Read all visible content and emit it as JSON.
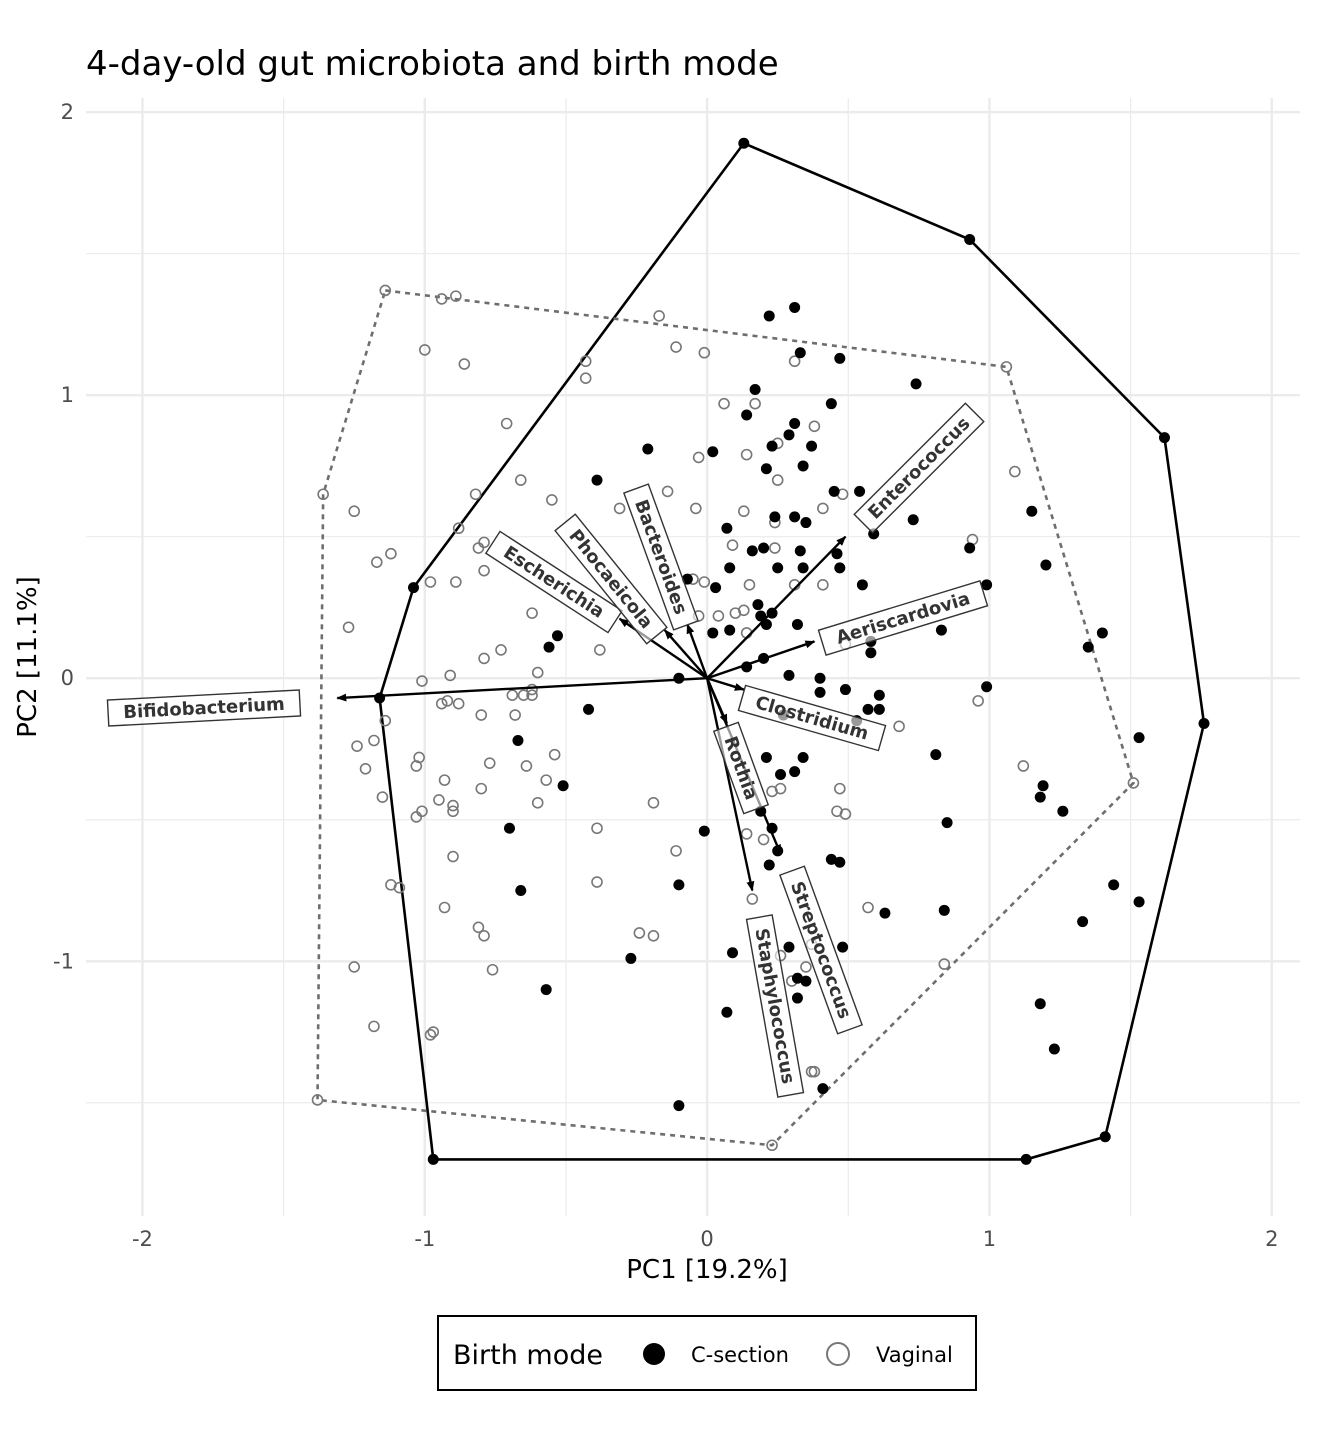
{
  "chart_data": {
    "type": "scatter",
    "title": "4-day-old gut microbiota and birth mode",
    "xlabel": "PC1 [19.2%]",
    "ylabel": "PC2 [11.1%]",
    "xlim": [
      -2.2,
      2.1
    ],
    "ylim": [
      -1.9,
      2.05
    ],
    "x_ticks": [
      -2,
      -1,
      0,
      1,
      2
    ],
    "x_tick_labels": [
      "-2",
      "-1",
      "0",
      "1",
      "2"
    ],
    "y_ticks": [
      -1,
      0,
      1,
      2
    ],
    "y_tick_labels": [
      "-1",
      "0",
      "1",
      "2"
    ],
    "grid": true,
    "legend": {
      "title": "Birth mode",
      "position": "bottom",
      "entries": [
        "C-section",
        "Vaginal"
      ]
    },
    "series": [
      {
        "name": "C-section",
        "marker": "filled-circle",
        "color": "#000000",
        "hull_style": "solid",
        "hull": [
          [
            0.13,
            1.89
          ],
          [
            0.93,
            1.55
          ],
          [
            1.62,
            0.85
          ],
          [
            1.76,
            -0.16
          ],
          [
            1.41,
            -1.62
          ],
          [
            1.13,
            -1.7
          ],
          [
            -0.97,
            -1.7
          ],
          [
            -1.16,
            -0.07
          ],
          [
            -1.04,
            0.32
          ]
        ],
        "points": [
          [
            0.13,
            1.89
          ],
          [
            0.93,
            1.55
          ],
          [
            1.62,
            0.85
          ],
          [
            1.76,
            -0.16
          ],
          [
            1.41,
            -1.62
          ],
          [
            1.13,
            -1.7
          ],
          [
            -0.97,
            -1.7
          ],
          [
            -1.16,
            -0.07
          ],
          [
            -1.04,
            0.32
          ],
          [
            0.22,
            1.28
          ],
          [
            0.31,
            1.31
          ],
          [
            0.33,
            1.15
          ],
          [
            0.47,
            1.13
          ],
          [
            0.74,
            1.04
          ],
          [
            0.17,
            1.02
          ],
          [
            0.14,
            0.93
          ],
          [
            0.44,
            0.97
          ],
          [
            0.31,
            0.9
          ],
          [
            0.29,
            0.86
          ],
          [
            0.23,
            0.82
          ],
          [
            0.37,
            0.82
          ],
          [
            0.02,
            0.8
          ],
          [
            0.21,
            0.74
          ],
          [
            0.34,
            0.75
          ],
          [
            -0.21,
            0.81
          ],
          [
            -0.39,
            0.7
          ],
          [
            0.45,
            0.66
          ],
          [
            0.54,
            0.66
          ],
          [
            0.73,
            0.56
          ],
          [
            0.24,
            0.57
          ],
          [
            0.31,
            0.57
          ],
          [
            0.35,
            0.55
          ],
          [
            0.07,
            0.53
          ],
          [
            1.15,
            0.59
          ],
          [
            0.16,
            0.45
          ],
          [
            0.2,
            0.46
          ],
          [
            0.33,
            0.45
          ],
          [
            0.46,
            0.44
          ],
          [
            0.59,
            0.51
          ],
          [
            0.93,
            0.46
          ],
          [
            0.08,
            0.39
          ],
          [
            0.25,
            0.39
          ],
          [
            0.34,
            0.39
          ],
          [
            0.47,
            0.39
          ],
          [
            0.55,
            0.33
          ],
          [
            0.99,
            0.33
          ],
          [
            1.2,
            0.4
          ],
          [
            -0.07,
            0.35
          ],
          [
            0.03,
            0.32
          ],
          [
            0.18,
            0.26
          ],
          [
            0.23,
            0.23
          ],
          [
            0.19,
            0.22
          ],
          [
            0.21,
            0.19
          ],
          [
            0.32,
            0.19
          ],
          [
            0.83,
            0.17
          ],
          [
            1.4,
            0.16
          ],
          [
            0.02,
            0.16
          ],
          [
            0.08,
            0.17
          ],
          [
            -0.53,
            0.15
          ],
          [
            -0.56,
            0.11
          ],
          [
            0.58,
            0.13
          ],
          [
            0.58,
            0.09
          ],
          [
            0.2,
            0.07
          ],
          [
            1.35,
            0.11
          ],
          [
            0.14,
            0.04
          ],
          [
            0.29,
            0.01
          ],
          [
            0.4,
            0.0
          ],
          [
            -0.1,
            0.0
          ],
          [
            0.4,
            -0.05
          ],
          [
            0.49,
            -0.04
          ],
          [
            0.61,
            -0.06
          ],
          [
            0.57,
            -0.11
          ],
          [
            0.61,
            -0.11
          ],
          [
            0.99,
            -0.03
          ],
          [
            -0.42,
            -0.11
          ],
          [
            0.27,
            -0.13
          ],
          [
            0.53,
            -0.15
          ],
          [
            1.53,
            -0.21
          ],
          [
            -0.67,
            -0.22
          ],
          [
            0.21,
            -0.28
          ],
          [
            0.34,
            -0.28
          ],
          [
            0.26,
            -0.34
          ],
          [
            0.31,
            -0.33
          ],
          [
            0.81,
            -0.27
          ],
          [
            -0.51,
            -0.38
          ],
          [
            1.19,
            -0.38
          ],
          [
            1.18,
            -0.42
          ],
          [
            1.26,
            -0.47
          ],
          [
            0.19,
            -0.47
          ],
          [
            0.85,
            -0.51
          ],
          [
            -0.7,
            -0.53
          ],
          [
            -0.01,
            -0.54
          ],
          [
            0.23,
            -0.53
          ],
          [
            0.25,
            -0.61
          ],
          [
            0.22,
            -0.66
          ],
          [
            0.44,
            -0.64
          ],
          [
            0.47,
            -0.65
          ],
          [
            -0.66,
            -0.75
          ],
          [
            -0.1,
            -0.73
          ],
          [
            0.63,
            -0.83
          ],
          [
            0.84,
            -0.82
          ],
          [
            1.44,
            -0.73
          ],
          [
            1.53,
            -0.79
          ],
          [
            1.33,
            -0.86
          ],
          [
            -0.27,
            -0.99
          ],
          [
            0.09,
            -0.97
          ],
          [
            0.29,
            -0.95
          ],
          [
            0.48,
            -0.95
          ],
          [
            -0.57,
            -1.1
          ],
          [
            0.32,
            -1.06
          ],
          [
            0.35,
            -1.07
          ],
          [
            0.32,
            -1.13
          ],
          [
            0.07,
            -1.18
          ],
          [
            1.18,
            -1.15
          ],
          [
            1.23,
            -1.31
          ],
          [
            0.41,
            -1.45
          ],
          [
            -0.1,
            -1.51
          ]
        ]
      },
      {
        "name": "Vaginal",
        "marker": "open-circle",
        "color": "#777777",
        "hull_style": "dashed",
        "hull": [
          [
            -1.14,
            1.37
          ],
          [
            1.06,
            1.1
          ],
          [
            1.51,
            -0.37
          ],
          [
            0.23,
            -1.65
          ],
          [
            -1.38,
            -1.49
          ],
          [
            -1.36,
            0.65
          ]
        ],
        "points": [
          [
            -1.14,
            1.37
          ],
          [
            1.06,
            1.1
          ],
          [
            1.51,
            -0.37
          ],
          [
            0.23,
            -1.65
          ],
          [
            -1.38,
            -1.49
          ],
          [
            -1.36,
            0.65
          ],
          [
            -0.94,
            1.34
          ],
          [
            -0.89,
            1.35
          ],
          [
            -0.17,
            1.28
          ],
          [
            -1.0,
            1.16
          ],
          [
            -0.86,
            1.11
          ],
          [
            -0.43,
            1.12
          ],
          [
            -0.43,
            1.06
          ],
          [
            -0.11,
            1.17
          ],
          [
            -0.01,
            1.15
          ],
          [
            0.31,
            1.12
          ],
          [
            0.17,
            0.97
          ],
          [
            0.06,
            0.97
          ],
          [
            0.38,
            0.89
          ],
          [
            -0.71,
            0.9
          ],
          [
            0.25,
            0.83
          ],
          [
            0.14,
            0.79
          ],
          [
            -0.03,
            0.78
          ],
          [
            0.25,
            0.7
          ],
          [
            -0.66,
            0.7
          ],
          [
            1.09,
            0.73
          ],
          [
            -0.82,
            0.65
          ],
          [
            -0.14,
            0.66
          ],
          [
            -0.55,
            0.63
          ],
          [
            0.48,
            0.65
          ],
          [
            0.41,
            0.6
          ],
          [
            -0.04,
            0.6
          ],
          [
            0.13,
            0.59
          ],
          [
            -1.25,
            0.59
          ],
          [
            -0.31,
            0.6
          ],
          [
            -0.88,
            0.53
          ],
          [
            -0.79,
            0.48
          ],
          [
            -0.81,
            0.46
          ],
          [
            0.09,
            0.47
          ],
          [
            0.24,
            0.55
          ],
          [
            0.24,
            0.46
          ],
          [
            0.94,
            0.49
          ],
          [
            -1.12,
            0.44
          ],
          [
            -1.17,
            0.41
          ],
          [
            -0.79,
            0.38
          ],
          [
            -0.98,
            0.34
          ],
          [
            -0.89,
            0.34
          ],
          [
            0.31,
            0.33
          ],
          [
            0.41,
            0.33
          ],
          [
            -0.05,
            0.35
          ],
          [
            -0.01,
            0.34
          ],
          [
            0.15,
            0.33
          ],
          [
            -0.62,
            0.23
          ],
          [
            -0.03,
            0.22
          ],
          [
            0.04,
            0.22
          ],
          [
            0.1,
            0.23
          ],
          [
            0.13,
            0.24
          ],
          [
            -1.27,
            0.18
          ],
          [
            -0.38,
            0.1
          ],
          [
            -0.73,
            0.1
          ],
          [
            -0.79,
            0.07
          ],
          [
            0.49,
            0.12
          ],
          [
            0.14,
            0.16
          ],
          [
            -1.01,
            -0.01
          ],
          [
            -0.91,
            0.01
          ],
          [
            -0.6,
            0.02
          ],
          [
            -0.65,
            -0.06
          ],
          [
            -0.62,
            -0.06
          ],
          [
            -0.69,
            -0.06
          ],
          [
            -0.62,
            -0.04
          ],
          [
            -0.92,
            -0.08
          ],
          [
            -0.94,
            -0.09
          ],
          [
            -0.88,
            -0.09
          ],
          [
            -0.8,
            -0.13
          ],
          [
            -0.68,
            -0.13
          ],
          [
            -1.14,
            -0.15
          ],
          [
            -1.24,
            -0.24
          ],
          [
            -1.18,
            -0.22
          ],
          [
            -0.54,
            -0.27
          ],
          [
            -0.77,
            -0.3
          ],
          [
            -1.03,
            -0.31
          ],
          [
            -1.02,
            -0.28
          ],
          [
            -1.21,
            -0.32
          ],
          [
            -0.64,
            -0.31
          ],
          [
            -0.93,
            -0.36
          ],
          [
            -0.57,
            -0.36
          ],
          [
            -0.8,
            -0.39
          ],
          [
            -1.15,
            -0.42
          ],
          [
            -0.95,
            -0.43
          ],
          [
            -0.9,
            -0.45
          ],
          [
            -1.01,
            -0.47
          ],
          [
            -1.03,
            -0.49
          ],
          [
            -0.9,
            -0.47
          ],
          [
            -0.19,
            -0.44
          ],
          [
            -0.6,
            -0.44
          ],
          [
            -0.39,
            -0.53
          ],
          [
            0.14,
            -0.55
          ],
          [
            0.2,
            -0.57
          ],
          [
            -0.11,
            -0.61
          ],
          [
            0.23,
            -0.4
          ],
          [
            0.26,
            -0.39
          ],
          [
            0.46,
            -0.47
          ],
          [
            0.49,
            -0.48
          ],
          [
            0.47,
            -0.39
          ],
          [
            0.68,
            -0.17
          ],
          [
            0.96,
            -0.08
          ],
          [
            1.12,
            -0.31
          ],
          [
            -0.9,
            -0.63
          ],
          [
            -1.12,
            -0.73
          ],
          [
            -1.09,
            -0.74
          ],
          [
            -0.93,
            -0.81
          ],
          [
            -0.81,
            -0.88
          ],
          [
            -0.79,
            -0.91
          ],
          [
            -0.39,
            -0.72
          ],
          [
            -0.24,
            -0.9
          ],
          [
            -0.19,
            -0.91
          ],
          [
            -0.76,
            -1.03
          ],
          [
            -1.25,
            -1.02
          ],
          [
            -1.18,
            -1.23
          ],
          [
            -0.97,
            -1.25
          ],
          [
            -0.98,
            -1.26
          ],
          [
            0.16,
            -0.78
          ],
          [
            0.57,
            -0.81
          ],
          [
            0.26,
            -0.98
          ],
          [
            0.35,
            -1.02
          ],
          [
            0.3,
            -1.07
          ],
          [
            0.37,
            -0.94
          ],
          [
            0.37,
            -1.39
          ],
          [
            0.38,
            -1.39
          ],
          [
            0.84,
            -1.01
          ]
        ]
      }
    ],
    "loadings": [
      {
        "label": "Bifidobacterium",
        "x": -1.31,
        "y": -0.07
      },
      {
        "label": "Escherichia",
        "x": -0.31,
        "y": 0.21
      },
      {
        "label": "Phocaeicola",
        "x": -0.15,
        "y": 0.17
      },
      {
        "label": "Bacteroides",
        "x": -0.07,
        "y": 0.19
      },
      {
        "label": "Enterococcus",
        "x": 0.49,
        "y": 0.5
      },
      {
        "label": "Aeriscardovia",
        "x": 0.38,
        "y": 0.13
      },
      {
        "label": "Clostridium",
        "x": 0.13,
        "y": -0.04
      },
      {
        "label": "Rothia",
        "x": 0.07,
        "y": -0.16
      },
      {
        "label": "Streptococcus",
        "x": 0.26,
        "y": -0.62
      },
      {
        "label": "Staphylococcus",
        "x": 0.16,
        "y": -0.75
      }
    ]
  }
}
